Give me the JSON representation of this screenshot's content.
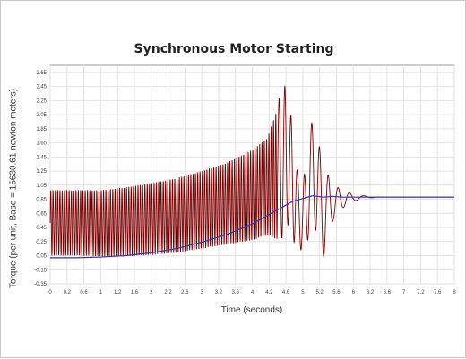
{
  "chart_data": {
    "type": "line",
    "title": "Synchronous Motor Starting",
    "xlabel": "Time (seconds)",
    "ylabel": "Torque (per unit, Base = 15630.61 newton meters)",
    "xlim": [
      0,
      8
    ],
    "ylim": [
      -0.35,
      2.75
    ],
    "x_tick_labels": [
      "0",
      "0.2",
      "0.6",
      "1",
      "1.2",
      "1.6",
      "2",
      "2.2",
      "2.6",
      "3",
      "3.2",
      "3.6",
      "4",
      "4.2",
      "4.6",
      "5",
      "5.2",
      "5.6",
      "6",
      "6.2",
      "6.6",
      "7",
      "7.2",
      "7.6",
      "8"
    ],
    "y_ticks": [
      -0.35,
      -0.15,
      0.05,
      0.25,
      0.45,
      0.65,
      0.85,
      1.05,
      1.25,
      1.45,
      1.65,
      1.85,
      2.05,
      2.25,
      2.45,
      2.65
    ],
    "y_tick_labels": [
      "-0.35",
      "-0.15",
      "0.05",
      "0.25",
      "0.45",
      "0.65",
      "0.85",
      "1.05",
      "1.25",
      "1.45",
      "1.65",
      "1.85",
      "2.05",
      "2.25",
      "2.45",
      "2.65"
    ],
    "grid": true,
    "series": [
      {
        "color": "#7a0000",
        "style": "oscillating envelope",
        "x": [
          0,
          0.5,
          1.0,
          1.5,
          2.0,
          2.5,
          3.0,
          3.5,
          4.0,
          4.3,
          4.5,
          4.6,
          4.7,
          4.8,
          4.9,
          5.0,
          5.2,
          5.4,
          5.6,
          5.8,
          6.0,
          6.2,
          6.5,
          8.0
        ],
        "upper": [
          0.98,
          0.98,
          0.98,
          1.02,
          1.08,
          1.15,
          1.25,
          1.37,
          1.55,
          1.72,
          2.15,
          2.58,
          2.3,
          1.9,
          1.2,
          1.05,
          2.05,
          1.35,
          1.05,
          0.98,
          0.92,
          0.9,
          0.88,
          0.88
        ],
        "lower": [
          0.05,
          0.05,
          0.04,
          0.04,
          0.06,
          0.09,
          0.15,
          0.21,
          0.27,
          0.34,
          0.28,
          0.3,
          0.5,
          0.2,
          0.35,
          0.0,
          0.55,
          0.0,
          0.55,
          0.73,
          0.82,
          0.86,
          0.88,
          0.88
        ]
      },
      {
        "color": "#3333aa",
        "style": "line",
        "x": [
          0,
          0.5,
          1.0,
          1.5,
          2.0,
          2.5,
          3.0,
          3.5,
          4.0,
          4.5,
          4.8,
          5.0,
          5.2,
          5.4,
          5.6,
          5.8,
          6.0,
          6.5,
          8.0
        ],
        "values": [
          0.02,
          0.02,
          0.03,
          0.05,
          0.09,
          0.15,
          0.24,
          0.35,
          0.5,
          0.7,
          0.82,
          0.86,
          0.9,
          0.88,
          0.89,
          0.88,
          0.88,
          0.88,
          0.88
        ]
      }
    ]
  }
}
